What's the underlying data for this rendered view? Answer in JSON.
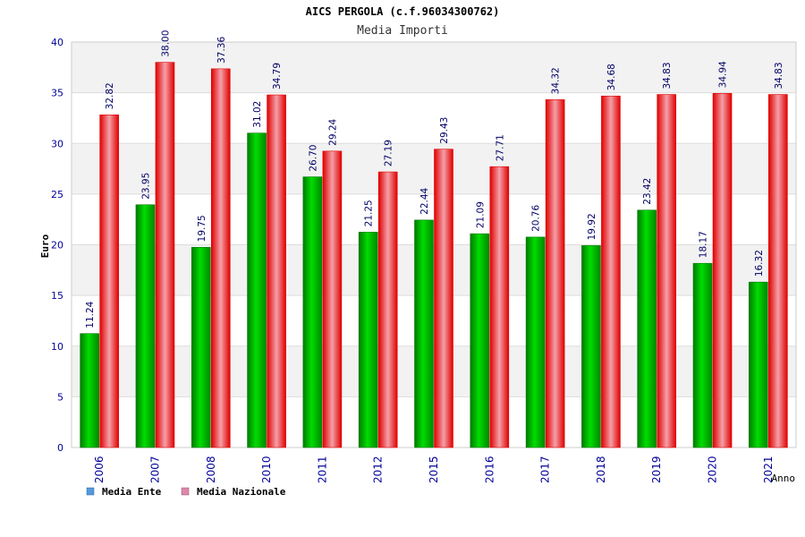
{
  "chart_data": {
    "type": "bar",
    "title": "AICS PERGOLA (c.f.96034300762)",
    "subtitle": "Media Importi",
    "xlabel": "Anno",
    "ylabel": "Euro",
    "ylim": [
      0,
      40
    ],
    "yticks": [
      "0",
      "5",
      "10",
      "15",
      "20",
      "25",
      "30",
      "35",
      "40"
    ],
    "categories": [
      "2006",
      "2007",
      "2008",
      "2010",
      "2011",
      "2012",
      "2015",
      "2016",
      "2017",
      "2018",
      "2019",
      "2020",
      "2021"
    ],
    "series": [
      {
        "name": "Media Ente",
        "values": [
          11.24,
          23.95,
          19.75,
          31.02,
          26.7,
          21.25,
          22.44,
          21.09,
          20.76,
          19.92,
          23.42,
          18.17,
          16.32
        ],
        "labels": [
          "11.24",
          "23.95",
          "19.75",
          "31.02",
          "26.70",
          "21.25",
          "22.44",
          "21.09",
          "20.76",
          "19.92",
          "23.42",
          "18.17",
          "16.32"
        ]
      },
      {
        "name": "Media Nazionale",
        "values": [
          32.82,
          38.0,
          37.36,
          34.79,
          29.24,
          27.19,
          29.43,
          27.71,
          34.32,
          34.68,
          34.83,
          34.94,
          34.83
        ],
        "labels": [
          "32.82",
          "38.00",
          "37.36",
          "34.79",
          "29.24",
          "27.19",
          "29.43",
          "27.71",
          "34.32",
          "34.68",
          "34.83",
          "34.94",
          "34.83"
        ]
      }
    ],
    "legend": {
      "position": "bottom-left"
    },
    "grid": true,
    "colors": {
      "ente_dark": "#007a00",
      "ente_light": "#00dd00",
      "naz_dark": "#e00000",
      "naz_light": "#f4a0a8",
      "legend_ente": "#5599dd",
      "legend_naz": "#dd88aa",
      "axis_text": "#000099",
      "label_text": "#000066",
      "band": "#f2f2f2"
    }
  }
}
